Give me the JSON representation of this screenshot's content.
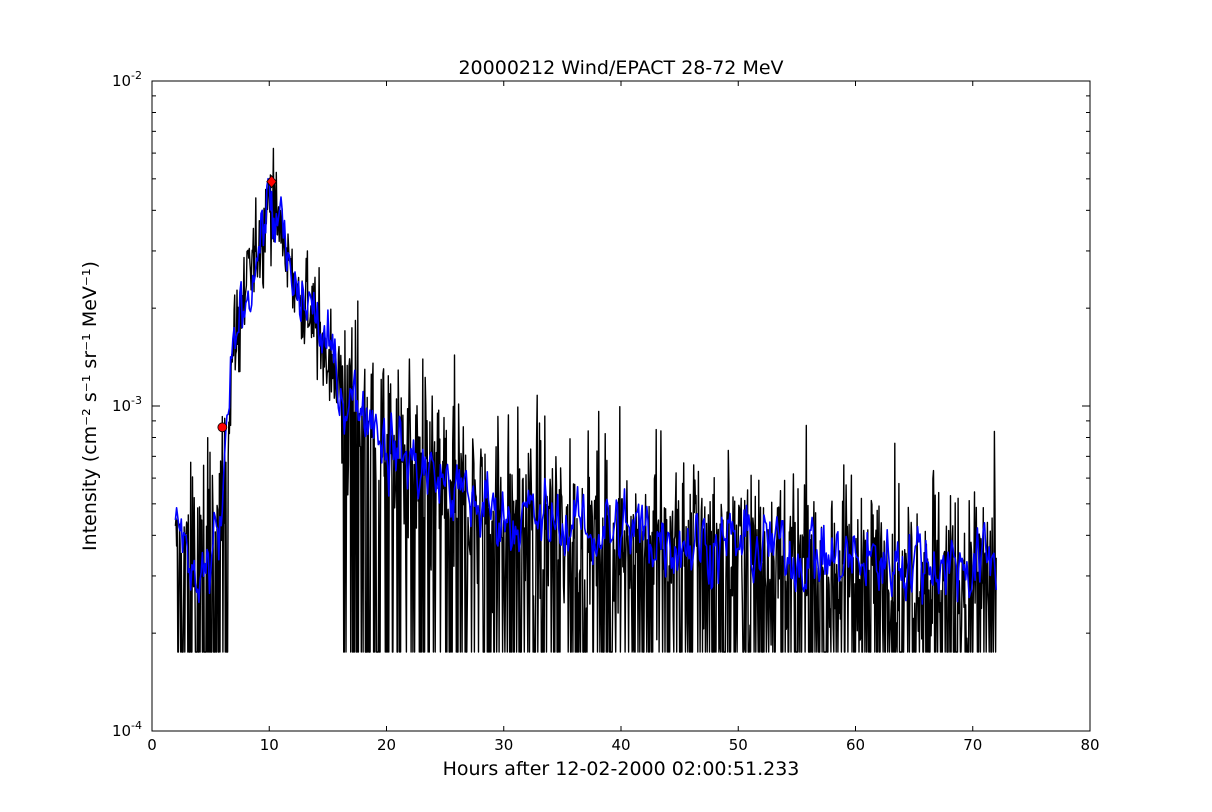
{
  "chart_data": {
    "type": "line",
    "title": "20000212 Wind/EPACT 28-72 MeV",
    "xlabel": "Hours after 12-02-2000 02:00:51.233",
    "ylabel": "Intensity (cm⁻² s⁻¹ sr⁻¹ MeV⁻¹)",
    "xlim": [
      0,
      80
    ],
    "ylim": [
      0.0001,
      0.01
    ],
    "yscale": "log",
    "grid": false,
    "x_ticks": [
      0,
      10,
      20,
      30,
      40,
      50,
      60,
      70,
      80
    ],
    "x_tick_labels": [
      "0",
      "10",
      "20",
      "30",
      "40",
      "50",
      "60",
      "70",
      "80"
    ],
    "y_ticks": [
      0.0001,
      0.001,
      0.01
    ],
    "y_tick_labels": [
      {
        "base": "10",
        "exp": "-4"
      },
      {
        "base": "10",
        "exp": "-3"
      },
      {
        "base": "10",
        "exp": "-2"
      }
    ],
    "noise_floor": 0.000175,
    "series": [
      {
        "role": "raw",
        "color": "#000000",
        "x": [
          2.0,
          6.0,
          7.0,
          8.0,
          9.0,
          10.0,
          11.0,
          12.0,
          13.0,
          14.0,
          15.0,
          16.0,
          17.0,
          18.0,
          20.0,
          22.0,
          25.0,
          28.0,
          30.0,
          35.0,
          40.0,
          45.0,
          50.0,
          55.0,
          60.0,
          65.0,
          72.0
        ],
        "y": [
          0.00036,
          0.0005,
          0.0016,
          0.0023,
          0.003,
          0.0043,
          0.0035,
          0.0024,
          0.0021,
          0.0018,
          0.0014,
          0.0012,
          0.00105,
          0.00095,
          0.0008,
          0.00068,
          0.00058,
          0.00052,
          0.0005,
          0.00045,
          0.00042,
          0.0004,
          0.00038,
          0.00036,
          0.00034,
          0.00034,
          0.00033
        ]
      },
      {
        "role": "smoothed",
        "color": "#0000ff",
        "x": [
          2.0,
          3.0,
          4.0,
          5.0,
          6.0,
          7.0,
          8.0,
          9.0,
          10.0,
          11.0,
          12.0,
          13.0,
          14.0,
          15.0,
          16.0,
          17.0,
          18.0,
          19.0,
          20.0,
          22.0,
          24.0,
          26.0,
          28.0,
          30.0,
          33.0,
          36.0,
          40.0,
          44.0,
          48.0,
          52.0,
          56.0,
          60.0,
          64.0,
          68.0,
          72.0
        ],
        "y": [
          0.00038,
          0.00036,
          0.00025,
          0.00033,
          0.00045,
          0.0016,
          0.0023,
          0.003,
          0.0044,
          0.0034,
          0.0022,
          0.0021,
          0.0019,
          0.0014,
          0.0012,
          0.00105,
          0.00102,
          0.00095,
          0.00078,
          0.00068,
          0.00062,
          0.00054,
          0.00049,
          0.00047,
          0.00044,
          0.00043,
          0.00041,
          0.0004,
          0.00038,
          0.00037,
          0.00035,
          0.00033,
          0.00034,
          0.00033,
          0.00033
        ]
      }
    ],
    "markers": [
      {
        "shape": "circle",
        "color": "#ff0000",
        "x": 6.0,
        "y": 0.00086
      },
      {
        "shape": "diamond",
        "color": "#ff0000",
        "x": 10.2,
        "y": 0.0049
      }
    ]
  }
}
